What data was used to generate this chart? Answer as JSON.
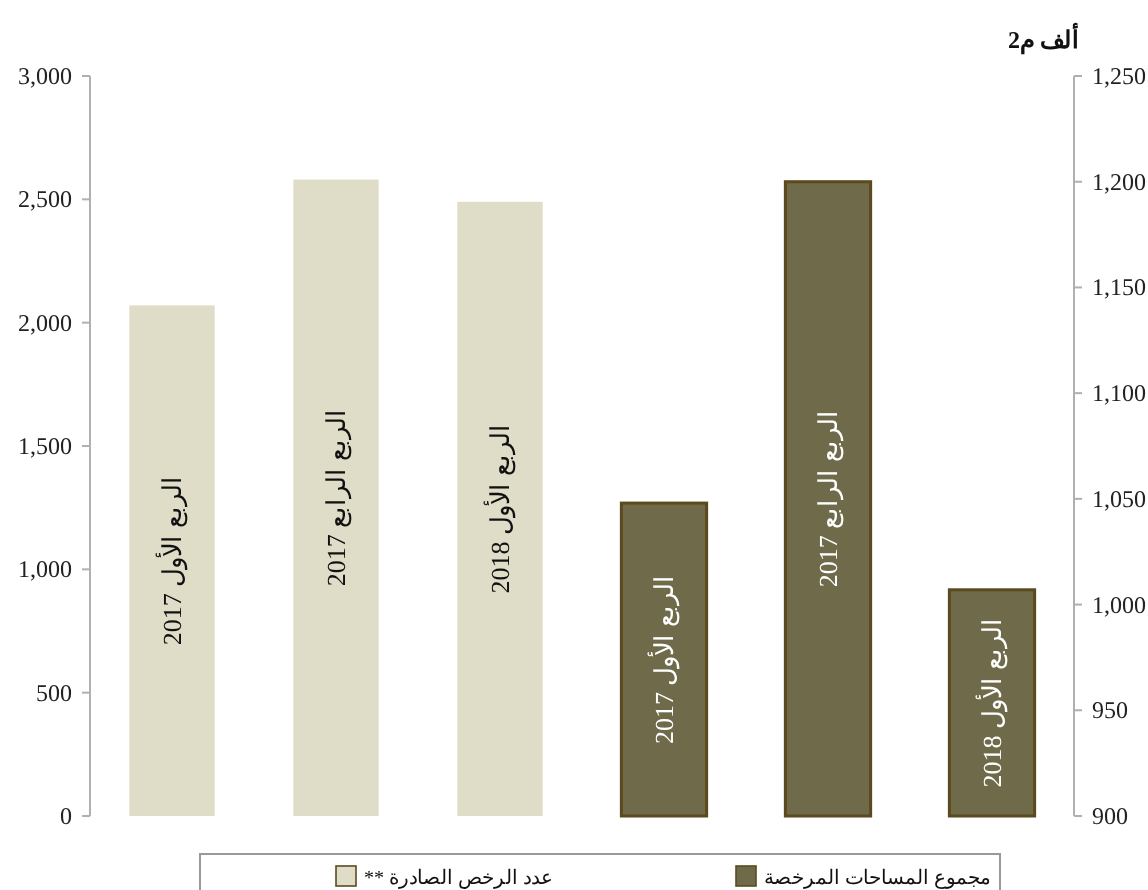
{
  "chart_data": {
    "type": "bar",
    "y2label": "ألف م2",
    "categories": [
      "الربع الأول 2017",
      "الربع الرابع 2017",
      "الربع الأول 2018",
      "الربع الأول 2017",
      "الربع الرابع 2017",
      "الربع الأول 2018"
    ],
    "series": [
      {
        "name": "عدد الرخص الصادرة **",
        "color": "#dfdcc8",
        "values": [
          2070,
          2580,
          2490,
          null,
          null,
          null
        ]
      },
      {
        "name": "مجموع المساحات المرخصة",
        "color": "#6e6a4a",
        "axis": "y2",
        "values": [
          null,
          null,
          null,
          1048,
          1200,
          1007
        ]
      }
    ],
    "ylim": [
      0,
      3000
    ],
    "yticks": [
      0,
      500,
      {
        "value": 1000,
        "label": "1,000"
      },
      {
        "value": 1500,
        "label": "1,500"
      },
      {
        "value": 2000,
        "label": "2,000"
      },
      {
        "value": 2500,
        "label": "2,500"
      },
      {
        "value": 3000,
        "label": "3,000"
      }
    ],
    "y2lim": [
      900,
      1250
    ],
    "y2ticks": [
      900,
      950,
      {
        "value": 1000,
        "label": "1,000"
      },
      {
        "value": 1050,
        "label": "1,050"
      },
      {
        "value": 1100,
        "label": "1,100"
      },
      {
        "value": 1150,
        "label": "1,150"
      },
      {
        "value": 1200,
        "label": "1,200"
      },
      {
        "value": 1250,
        "label": "1,250"
      }
    ],
    "legend": "bottom",
    "grid": false
  }
}
